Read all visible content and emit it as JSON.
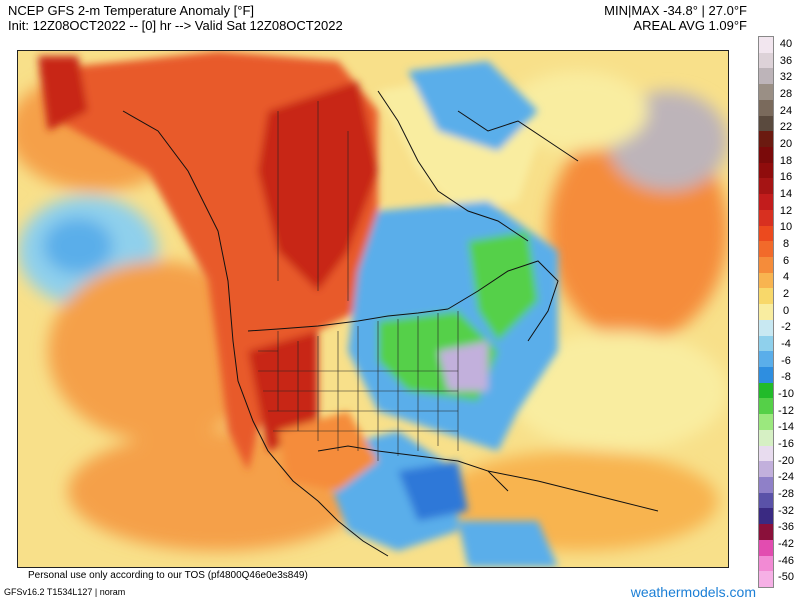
{
  "header": {
    "title": "NCEP GFS 2-m Temperature Anomaly [°F]",
    "init": "Init: 12Z08OCT2022 -- [0] hr --> Valid Sat 12Z08OCT2022",
    "minmax": "MIN|MAX -34.8° | 27.0°F",
    "areal": "AREAL AVG 1.09°F"
  },
  "footer": {
    "tos": "Personal use only according to our TOS (pf4800Q46e0e3s849)",
    "model": "GFSv16.2 T1534L127 | noram",
    "brand": "weathermodels.com"
  },
  "colorbar": {
    "labels": [
      "40",
      "36",
      "32",
      "28",
      "24",
      "22",
      "20",
      "18",
      "16",
      "14",
      "12",
      "10",
      "8",
      "6",
      "4",
      "2",
      "0",
      "-2",
      "-4",
      "-6",
      "-8",
      "-10",
      "-12",
      "-14",
      "-16",
      "-20",
      "-24",
      "-28",
      "-32",
      "-36",
      "-42",
      "-46",
      "-50"
    ],
    "colors": [
      "#f2e6ef",
      "#ddd2d8",
      "#bdb4b9",
      "#9a8f85",
      "#7a6a5c",
      "#5a4a3e",
      "#6b1a10",
      "#7a0a0a",
      "#8f0c0c",
      "#a51414",
      "#c21c1c",
      "#d83020",
      "#ec4a1e",
      "#f26a2a",
      "#f58c3a",
      "#f8b450",
      "#f8d86a",
      "#f9eda0",
      "#c8e8f2",
      "#8fd0ec",
      "#5aaeea",
      "#2e8ee0",
      "#22bb2a",
      "#55d048",
      "#9be87e",
      "#d6f0c4",
      "#e8dcef",
      "#c2b0dc",
      "#8f80c8",
      "#5a52a8",
      "#3a2a82",
      "#8a103a",
      "#e24cb0",
      "#f28ad4",
      "#f6b0e6"
    ]
  },
  "map": {
    "land_anomaly_colors": {
      "warm_strong": "#c82818",
      "warm": "#e85a2a",
      "mild": "#f5a04a",
      "neutral": "#f8e08a",
      "cool": "#5aaeea",
      "cold": "#2e78d8",
      "very_cold": "#22bb2a",
      "coldest": "#9be87e"
    }
  }
}
